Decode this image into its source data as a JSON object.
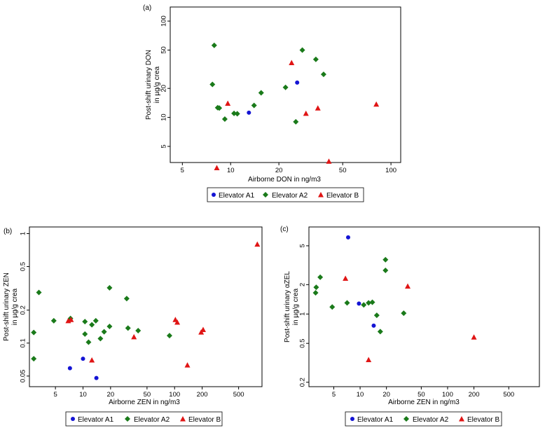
{
  "colors": {
    "A1": "#1414d4",
    "A2": "#1a7a1a",
    "B": "#e01515",
    "axis": "#000000",
    "legend_border": "#000000"
  },
  "chart_data": [
    {
      "id": "a",
      "panel_label": "(a)",
      "type": "scatter",
      "xscale": "log",
      "yscale": "log",
      "xlim": [
        4.2,
        115
      ],
      "ylim": [
        3.4,
        140
      ],
      "xticks": [
        5,
        10,
        20,
        50,
        100
      ],
      "yticks": [
        5,
        10,
        20,
        50,
        100
      ],
      "xlabel": "Airborne DON in ng/m3",
      "ylabel": [
        "Post-shift urinary DON",
        "in µg/g crea"
      ],
      "legend": [
        "Elevator A1",
        "Elevator A2",
        "Elevator B"
      ],
      "series": [
        {
          "name": "Elevator A1",
          "marker": "circle",
          "points": [
            [
              13,
              11.2
            ],
            [
              26,
              23
            ]
          ]
        },
        {
          "name": "Elevator A2",
          "marker": "diamond",
          "points": [
            [
              7.9,
              56
            ],
            [
              7.7,
              22
            ],
            [
              8.3,
              12.6
            ],
            [
              8.5,
              12.5
            ],
            [
              9.2,
              9.6
            ],
            [
              10.5,
              11
            ],
            [
              11,
              10.9
            ],
            [
              14,
              13.3
            ],
            [
              15.5,
              18
            ],
            [
              22,
              20.5
            ],
            [
              25.5,
              9
            ],
            [
              28,
              50
            ],
            [
              34,
              40
            ],
            [
              38,
              28
            ]
          ]
        },
        {
          "name": "Elevator B",
          "marker": "triangle",
          "points": [
            [
              8.2,
              3.0
            ],
            [
              9.6,
              14
            ],
            [
              24,
              37
            ],
            [
              29.5,
              11
            ],
            [
              35,
              12.5
            ],
            [
              41,
              3.5
            ],
            [
              81,
              13.7
            ]
          ]
        }
      ]
    },
    {
      "id": "b",
      "panel_label": "(b)",
      "type": "scatter",
      "xscale": "log",
      "yscale": "log",
      "xlim": [
        2.6,
        900
      ],
      "ylim": [
        0.04,
        1.15
      ],
      "xticks": [
        5,
        10,
        20,
        50,
        100,
        200,
        500
      ],
      "yticks": [
        0.05,
        0.1,
        0.2,
        0.5,
        1
      ],
      "xlabel": "Airborne ZEN in ng/m3",
      "ylabel": [
        "Post-shift urinary ZEN",
        "in µg/g crea"
      ],
      "legend": [
        "Elevator A1",
        "Elevator A2",
        "Elevator B"
      ],
      "series": [
        {
          "name": "Elevator A1",
          "marker": "circle",
          "points": [
            [
              7.2,
              0.059
            ],
            [
              10,
              0.072
            ],
            [
              14,
              0.048
            ]
          ]
        },
        {
          "name": "Elevator A2",
          "marker": "diamond",
          "points": [
            [
              2.9,
              0.072
            ],
            [
              2.9,
              0.125
            ],
            [
              3.3,
              0.29
            ],
            [
              4.8,
              0.16
            ],
            [
              7.3,
              0.168
            ],
            [
              10.5,
              0.157
            ],
            [
              10.5,
              0.121
            ],
            [
              11.5,
              0.102
            ],
            [
              12.5,
              0.147
            ],
            [
              13.8,
              0.16
            ],
            [
              15.5,
              0.11
            ],
            [
              17,
              0.127
            ],
            [
              19.5,
              0.142
            ],
            [
              19.5,
              0.32
            ],
            [
              30,
              0.255
            ],
            [
              31,
              0.137
            ],
            [
              40,
              0.13
            ],
            [
              88,
              0.117
            ]
          ]
        },
        {
          "name": "Elevator B",
          "marker": "triangle",
          "points": [
            [
              6.9,
              0.16
            ],
            [
              7.4,
              0.164
            ],
            [
              12.5,
              0.07
            ],
            [
              36,
              0.114
            ],
            [
              102,
              0.164
            ],
            [
              107,
              0.155
            ],
            [
              138,
              0.063
            ],
            [
              195,
              0.126
            ],
            [
              205,
              0.133
            ],
            [
              800,
              0.8
            ]
          ]
        }
      ]
    },
    {
      "id": "c",
      "panel_label": "(c)",
      "type": "scatter",
      "xscale": "log",
      "yscale": "log",
      "xlim": [
        2.6,
        1120
      ],
      "ylim": [
        0.18,
        7.8
      ],
      "xticks": [
        5,
        10,
        20,
        50,
        100,
        200,
        500
      ],
      "yticks": [
        0.2,
        0.5,
        1,
        2,
        5
      ],
      "xlabel": "Airborne ZEN in ng/m3",
      "ylabel": [
        "Post-shift urinary αZEL",
        "in µg/g crea"
      ],
      "legend": [
        "Elevator A1",
        "Elevator A2",
        "Elevator B"
      ],
      "series": [
        {
          "name": "Elevator A1",
          "marker": "circle",
          "points": [
            [
              7.3,
              6.1
            ],
            [
              9.7,
              1.28
            ],
            [
              14.3,
              0.76
            ]
          ]
        },
        {
          "name": "Elevator A2",
          "marker": "diamond",
          "points": [
            [
              3.1,
              1.65
            ],
            [
              3.15,
              1.88
            ],
            [
              3.5,
              2.38
            ],
            [
              4.8,
              1.18
            ],
            [
              7.1,
              1.3
            ],
            [
              11,
              1.24
            ],
            [
              12.5,
              1.3
            ],
            [
              13.8,
              1.32
            ],
            [
              15.5,
              0.97
            ],
            [
              17,
              0.66
            ],
            [
              19.5,
              3.6
            ],
            [
              19.5,
              2.8
            ],
            [
              31.5,
              1.02
            ]
          ]
        },
        {
          "name": "Elevator B",
          "marker": "triangle",
          "points": [
            [
              6.8,
              2.32
            ],
            [
              12.5,
              0.34
            ],
            [
              35,
              1.93
            ],
            [
              200,
              0.58
            ]
          ]
        }
      ]
    }
  ]
}
